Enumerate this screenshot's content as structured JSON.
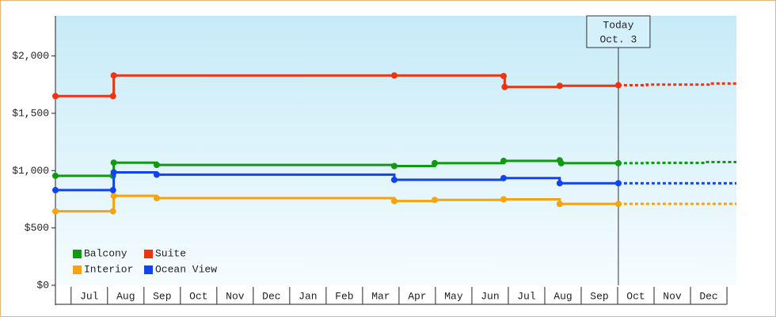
{
  "chart_data": {
    "type": "step-line",
    "ylim": [
      0,
      2350
    ],
    "yticks": [
      {
        "value": 0,
        "label": "$0"
      },
      {
        "value": 500,
        "label": "$500"
      },
      {
        "value": 1000,
        "label": "$1,000"
      },
      {
        "value": 1500,
        "label": "$1,500"
      },
      {
        "value": 2000,
        "label": "$2,000"
      }
    ],
    "xlim": [
      -0.43,
      18.26
    ],
    "xticks": [
      {
        "value": 0.5,
        "label": "Jul"
      },
      {
        "value": 1.5,
        "label": "Aug"
      },
      {
        "value": 2.5,
        "label": "Sep"
      },
      {
        "value": 3.5,
        "label": "Oct"
      },
      {
        "value": 4.5,
        "label": "Nov"
      },
      {
        "value": 5.5,
        "label": "Dec"
      },
      {
        "value": 6.5,
        "label": "Jan"
      },
      {
        "value": 7.5,
        "label": "Feb"
      },
      {
        "value": 8.5,
        "label": "Mar"
      },
      {
        "value": 9.5,
        "label": "Apr"
      },
      {
        "value": 10.5,
        "label": "May"
      },
      {
        "value": 11.5,
        "label": "Jun"
      },
      {
        "value": 12.5,
        "label": "Jul"
      },
      {
        "value": 13.5,
        "label": "Aug"
      },
      {
        "value": 14.5,
        "label": "Sep"
      },
      {
        "value": 15.5,
        "label": "Oct"
      },
      {
        "value": 16.5,
        "label": "Nov"
      },
      {
        "value": 17.5,
        "label": "Dec"
      }
    ],
    "annotation": {
      "lines": [
        "Today",
        "Oct. 3"
      ],
      "x": 15.02
    },
    "legend": "bottom-left",
    "series": [
      {
        "name": "Balcony",
        "color": "#119911",
        "x": [
          -0.43,
          1.15,
          1.17,
          2.35,
          8.87,
          9.98,
          11.87,
          13.41,
          13.45,
          15.02
        ],
        "values": [
          955,
          955,
          1070,
          1050,
          1040,
          1065,
          1085,
          1090,
          1065,
          1065
        ],
        "forecast_x": [
          15.02,
          15.8,
          17.4,
          18.26
        ],
        "forecast_values": [
          1065,
          1068,
          1075,
          1075
        ]
      },
      {
        "name": "Suite",
        "color": "#ee3311",
        "x": [
          -0.43,
          1.15,
          1.17,
          8.87,
          11.87,
          11.9,
          13.41,
          15.02
        ],
        "values": [
          1650,
          1650,
          1830,
          1830,
          1825,
          1730,
          1740,
          1745
        ],
        "forecast_x": [
          15.02,
          15.8,
          17.5,
          18.26
        ],
        "forecast_values": [
          1745,
          1750,
          1760,
          1760
        ]
      },
      {
        "name": "Interior",
        "color": "#f5a411",
        "x": [
          -0.43,
          1.15,
          1.17,
          2.35,
          8.87,
          9.98,
          11.87,
          13.41,
          15.02
        ],
        "values": [
          645,
          645,
          780,
          760,
          735,
          745,
          750,
          710,
          710
        ],
        "forecast_x": [
          15.02,
          18.26
        ],
        "forecast_values": [
          710,
          710
        ]
      },
      {
        "name": "Ocean View",
        "color": "#1144ee",
        "x": [
          -0.43,
          1.15,
          1.17,
          2.35,
          8.87,
          11.87,
          13.41,
          15.02
        ],
        "values": [
          830,
          830,
          985,
          965,
          920,
          935,
          890,
          890
        ],
        "forecast_x": [
          15.02,
          18.26
        ],
        "forecast_values": [
          890,
          890
        ]
      }
    ]
  }
}
